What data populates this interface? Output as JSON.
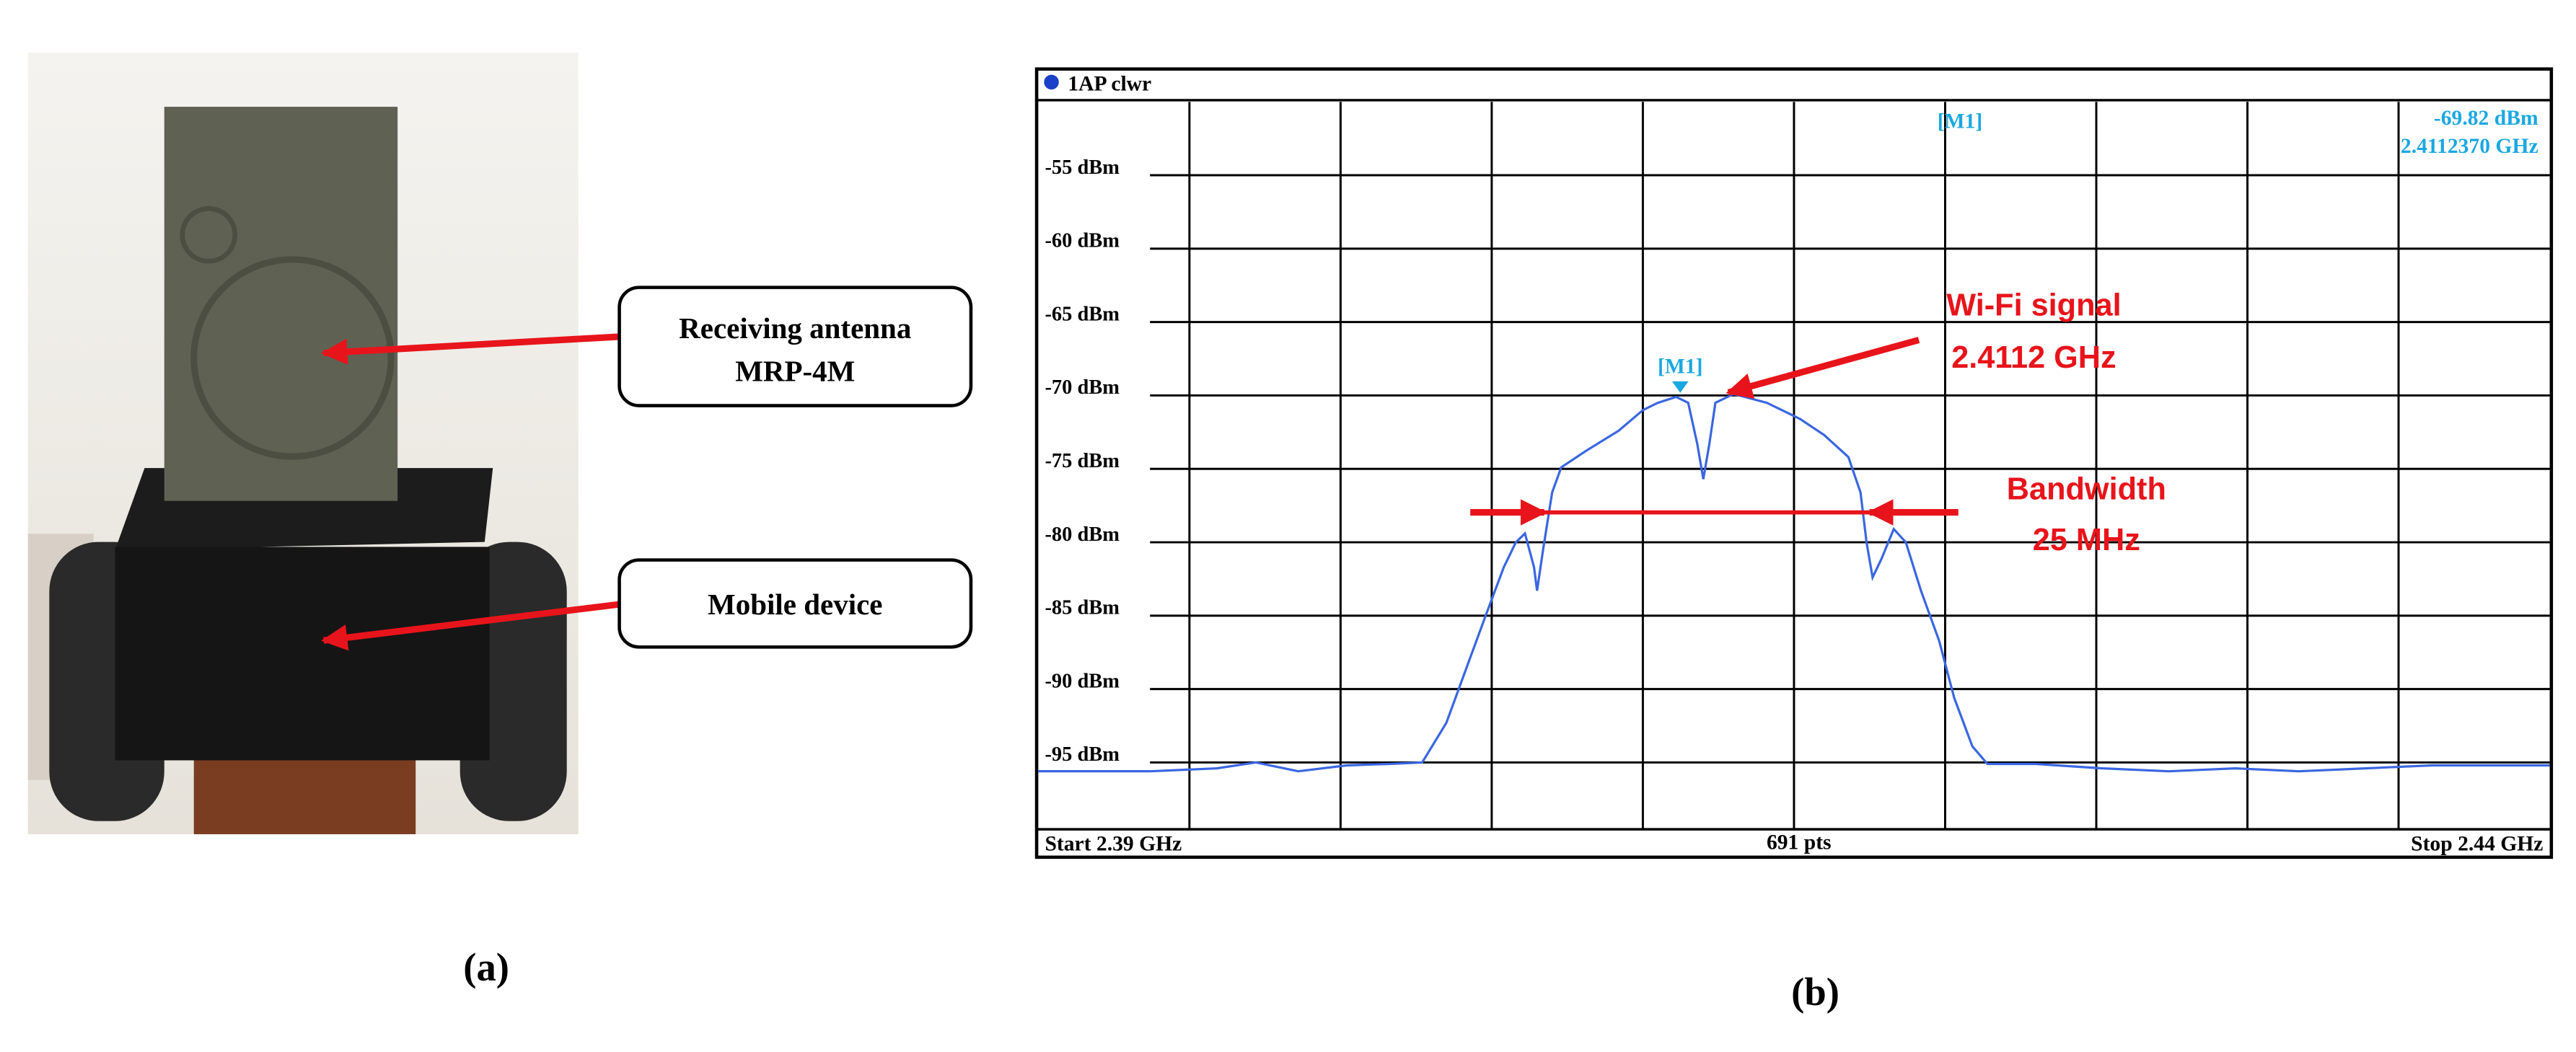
{
  "panel_a": {
    "label": "(a)",
    "annotations": [
      {
        "lines": [
          "Receiving antenna",
          "MRP-4M"
        ]
      },
      {
        "lines": [
          "Mobile device"
        ]
      }
    ]
  },
  "chart_data": {
    "type": "line",
    "panel_label": "(b)",
    "header": "1AP  clwr",
    "footer": [
      "Start 2.39 GHz",
      "691 pts",
      "Stop 2.44 GHz"
    ],
    "xlim": [
      2.39,
      2.44
    ],
    "ylim": [
      -100,
      -50
    ],
    "xgrid": [
      2.395,
      2.4,
      2.405,
      2.41,
      2.415,
      2.42,
      2.425,
      2.43,
      2.435
    ],
    "yticks": [
      {
        "value": -55,
        "label": "-55 dBm"
      },
      {
        "value": -60,
        "label": "-60 dBm"
      },
      {
        "value": -65,
        "label": "-65 dBm"
      },
      {
        "value": -70,
        "label": "-70 dBm"
      },
      {
        "value": -75,
        "label": "-75 dBm"
      },
      {
        "value": -80,
        "label": "-80 dBm"
      },
      {
        "value": -85,
        "label": "-85 dBm"
      },
      {
        "value": -90,
        "label": "-90 dBm"
      },
      {
        "value": -95,
        "label": "-95 dBm"
      }
    ],
    "grid": true,
    "x": [
      2.39,
      2.3937,
      2.3959,
      2.3972,
      2.3986,
      2.4002,
      2.4016,
      2.4027,
      2.4035,
      2.4043,
      2.4048,
      2.4054,
      2.4058,
      2.4061,
      2.4064,
      2.4065,
      2.4067,
      2.407,
      2.4073,
      2.4081,
      2.4092,
      2.41,
      2.4105,
      2.4111,
      2.4115,
      2.4118,
      2.412,
      2.4122,
      2.4124,
      2.413,
      2.4141,
      2.4152,
      2.416,
      2.4168,
      2.4172,
      2.4174,
      2.4176,
      2.4179,
      2.4183,
      2.4187,
      2.4192,
      2.4198,
      2.4203,
      2.4209,
      2.4214,
      2.423,
      2.4252,
      2.4274,
      2.4296,
      2.4317,
      2.4339,
      2.4361,
      2.4383,
      2.44
    ],
    "series": [
      {
        "color": "#3a66e0",
        "values": [
          -95.6,
          -95.6,
          -95.4,
          -95.0,
          -95.6,
          -95.2,
          -95.1,
          -95.0,
          -92.3,
          -87.8,
          -85.0,
          -81.7,
          -80.0,
          -79.4,
          -81.7,
          -83.3,
          -80.5,
          -76.6,
          -74.9,
          -73.8,
          -72.4,
          -71.0,
          -70.5,
          -70.1,
          -70.5,
          -73.3,
          -75.7,
          -73.3,
          -70.5,
          -69.9,
          -70.5,
          -71.6,
          -72.7,
          -74.2,
          -76.6,
          -80.0,
          -82.4,
          -81.1,
          -79.1,
          -80.0,
          -83.3,
          -86.7,
          -90.6,
          -93.9,
          -95.1,
          -95.1,
          -95.4,
          -95.6,
          -95.4,
          -95.6,
          -95.4,
          -95.2,
          -95.2,
          -95.2
        ]
      }
    ],
    "marker": {
      "name": "[M1]",
      "x": 2.411237,
      "x_label": "2.4112370 GHz",
      "y": -69.82,
      "y_label": "-69.82 dBm",
      "color": "#1ba8e0"
    },
    "annotations": {
      "signal": [
        "Wi-Fi signal",
        "2.4112 GHz"
      ],
      "bandwidth": [
        "Bandwidth",
        "25 MHz"
      ],
      "color": "#e8141b"
    }
  }
}
